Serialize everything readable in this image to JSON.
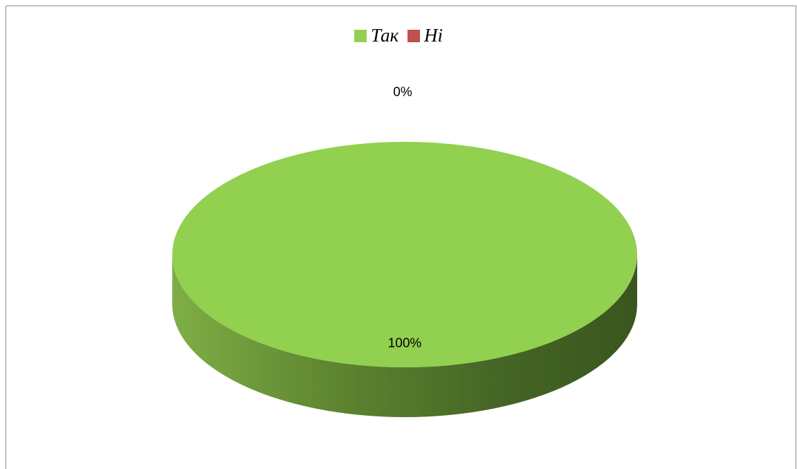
{
  "chart_data": {
    "type": "pie",
    "style": "3d",
    "series": [
      {
        "name": "Так",
        "value": 100,
        "label": "100%",
        "color": "#92d050"
      },
      {
        "name": "Ні",
        "value": 0,
        "label": "0%",
        "color": "#c0504d"
      }
    ],
    "legend": {
      "position": "top"
    }
  }
}
